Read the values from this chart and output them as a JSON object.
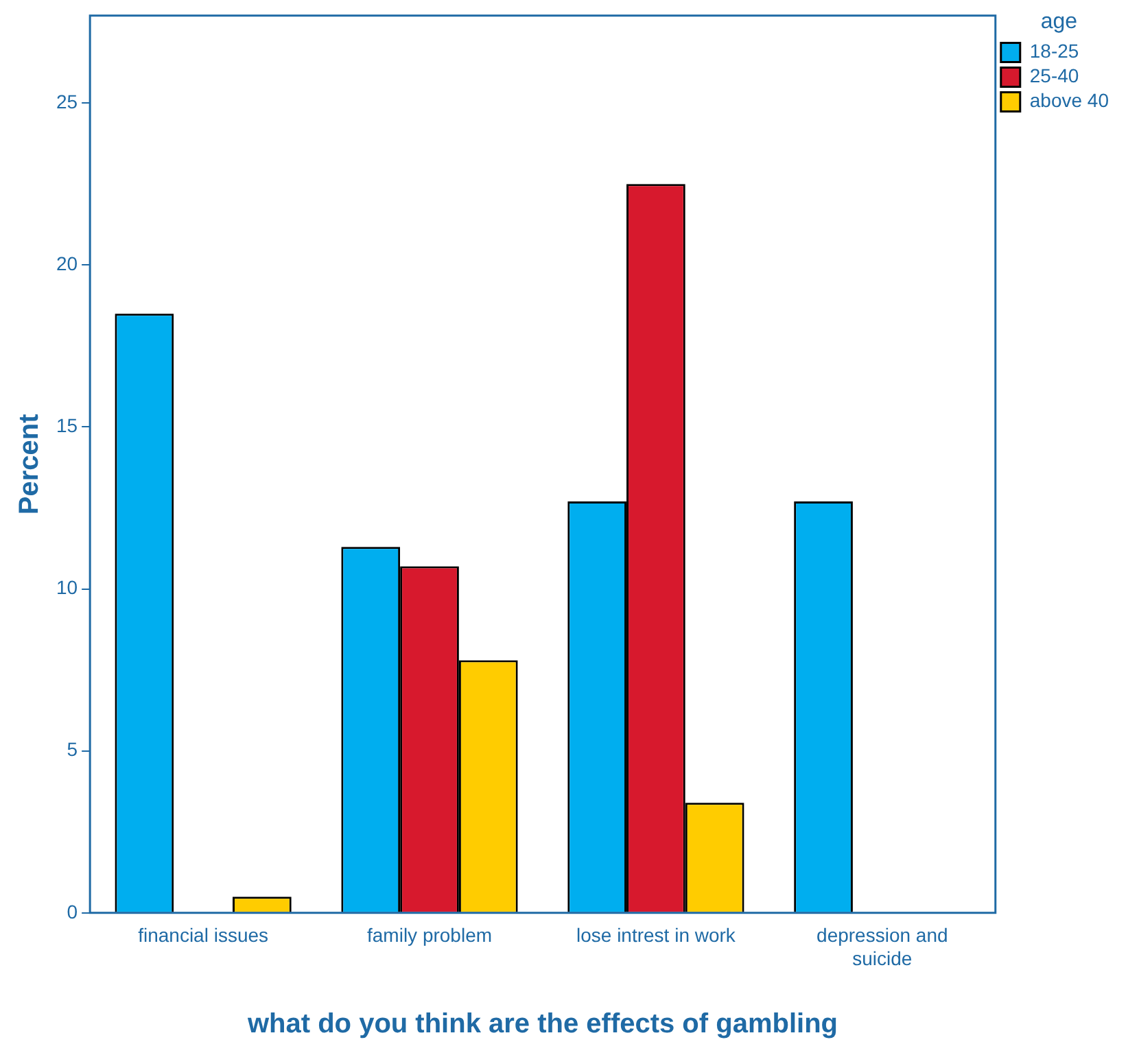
{
  "chart_data": {
    "type": "bar",
    "xlabel": "what do you think are the effects of gambling",
    "ylabel": "Percent",
    "legend_title": "age",
    "legend": "top right",
    "grid": false,
    "categories": [
      "financial issues",
      "family problem",
      "lose intrest in work",
      "depression and suicide"
    ],
    "series": [
      {
        "name": "18-25",
        "color": "#00aeef",
        "values": [
          18.5,
          11.3,
          12.7,
          12.7
        ]
      },
      {
        "name": "25-40",
        "color": "#d7192d",
        "values": [
          null,
          10.7,
          22.5,
          null
        ]
      },
      {
        "name": "above 40",
        "color": "#ffcc00",
        "values": [
          0.5,
          7.8,
          3.4,
          null
        ]
      }
    ],
    "ylim": [
      0,
      27.7
    ],
    "yticks": [
      0,
      5,
      10,
      15,
      20,
      25
    ]
  }
}
